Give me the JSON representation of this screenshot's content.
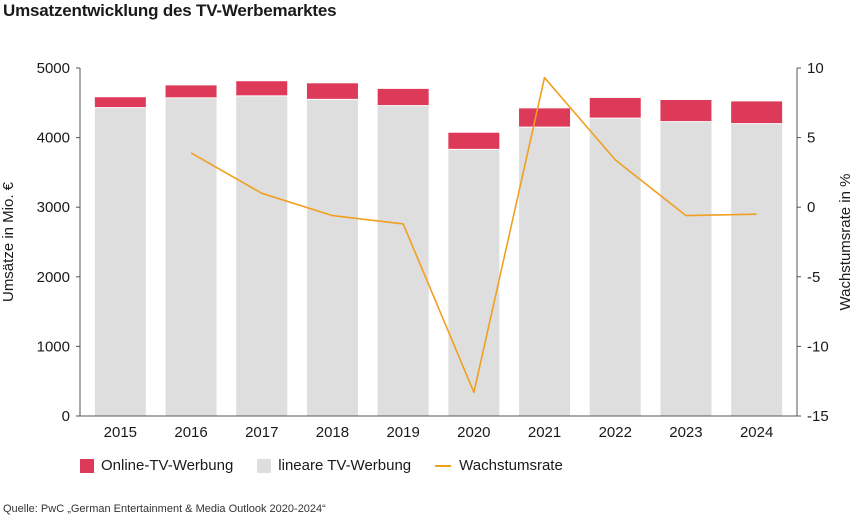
{
  "title": "Umsatzentwicklung des TV-Werbemarktes",
  "source": "Quelle: PwC „German Entertainment & Media Outlook 2020-2024“",
  "colors": {
    "online": "#dd3a5a",
    "linear": "#dedede",
    "growth": "#f0a020",
    "axis": "#555555"
  },
  "chart_data": {
    "type": "bar",
    "stacked": true,
    "categories": [
      "2015",
      "2016",
      "2017",
      "2018",
      "2019",
      "2020",
      "2021",
      "2022",
      "2023",
      "2024"
    ],
    "ylabel": "Umsätze in Mio. €",
    "ylim": [
      0,
      5000
    ],
    "yticks": [
      "0",
      "1000",
      "2000",
      "3000",
      "4000",
      "5000"
    ],
    "y2label": "Wachstumsrate in %",
    "y2lim": [
      -15,
      10
    ],
    "y2ticks": [
      "-15",
      "-10",
      "-5",
      "0",
      "5",
      "10"
    ],
    "series": [
      {
        "name": "lineare TV-Werbung",
        "values": [
          4430,
          4570,
          4600,
          4550,
          4460,
          3830,
          4150,
          4280,
          4230,
          4200
        ]
      },
      {
        "name": "Online-TV-Werbung",
        "values": [
          150,
          180,
          210,
          230,
          240,
          240,
          270,
          290,
          310,
          320
        ]
      }
    ],
    "line_series": {
      "name": "Wachstumsrate",
      "values": [
        null,
        3.9,
        1.0,
        -0.6,
        -1.2,
        -13.3,
        9.3,
        3.4,
        -0.6,
        -0.5
      ]
    },
    "grid": false,
    "legend_position": "bottom-left"
  }
}
